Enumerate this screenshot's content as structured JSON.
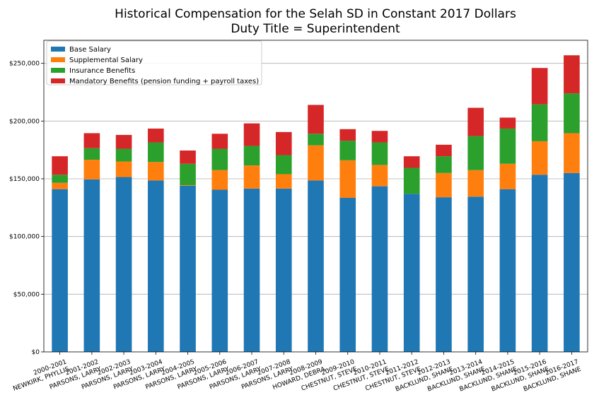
{
  "chart_data": {
    "type": "bar",
    "stacked": true,
    "title": "Historical Compensation for the Selah SD in Constant 2017 Dollars",
    "subtitle": "Duty Title = Superintendent",
    "xlabel": "",
    "ylabel": "",
    "ylim": [
      0,
      270000
    ],
    "yticks": [
      0,
      50000,
      100000,
      150000,
      200000,
      250000
    ],
    "ytick_labels": [
      "$0",
      "$50,000",
      "$100,000",
      "$150,000",
      "$200,000",
      "$250,000"
    ],
    "grid": "horizontal",
    "legend_position": "top-left",
    "categories": [
      "2000-2001\nNEWKIRK, PHYLLIS",
      "2001-2002\nPARSONS, LARRY",
      "2002-2003\nPARSONS, LARRY",
      "2003-2004\nPARSONS, LARRY",
      "2004-2005\nPARSONS, LARRY",
      "2005-2006\nPARSONS, LARRY",
      "2006-2007\nPARSONS, LARRY",
      "2007-2008\nPARSONS, LARRY",
      "2008-2009\nHOWARD, DEBRA",
      "2009-2010\nCHESTNUT, STEVE",
      "2010-2011\nCHESTNUT, STEVE",
      "2011-2012\nCHESTNUT, STEVE",
      "2012-2013\nBACKLUND, SHANE",
      "2013-2014\nBACKLUND, SHANE",
      "2014-2015\nBACKLUND, SHANE",
      "2015-2016\nBACKLUND, SHANE",
      "2016-2017\nBACKLUND, SHANE"
    ],
    "series": [
      {
        "name": "Base Salary",
        "color": "#1f77b4",
        "values": [
          141000,
          149500,
          151500,
          148500,
          144000,
          140500,
          141500,
          141500,
          148500,
          133500,
          143500,
          137000,
          134000,
          134500,
          141000,
          153500,
          155000
        ]
      },
      {
        "name": "Supplemental Salary",
        "color": "#ff7f0e",
        "values": [
          5500,
          17000,
          13500,
          16000,
          500,
          17000,
          20000,
          12500,
          30500,
          32500,
          18500,
          0,
          21000,
          23000,
          22000,
          29000,
          34500
        ]
      },
      {
        "name": "Insurance Benefits",
        "color": "#2ca02c",
        "values": [
          7000,
          10000,
          11000,
          17000,
          18500,
          18500,
          17000,
          16500,
          10000,
          17000,
          19500,
          22500,
          14500,
          29500,
          30500,
          32000,
          34500
        ]
      },
      {
        "name": "Mandatory Benefits (pension funding + payroll taxes)",
        "color": "#d62728",
        "values": [
          16000,
          13000,
          12000,
          12000,
          11500,
          13000,
          19500,
          20000,
          25000,
          10000,
          10000,
          10000,
          10000,
          24500,
          9500,
          31500,
          33000
        ]
      }
    ]
  }
}
